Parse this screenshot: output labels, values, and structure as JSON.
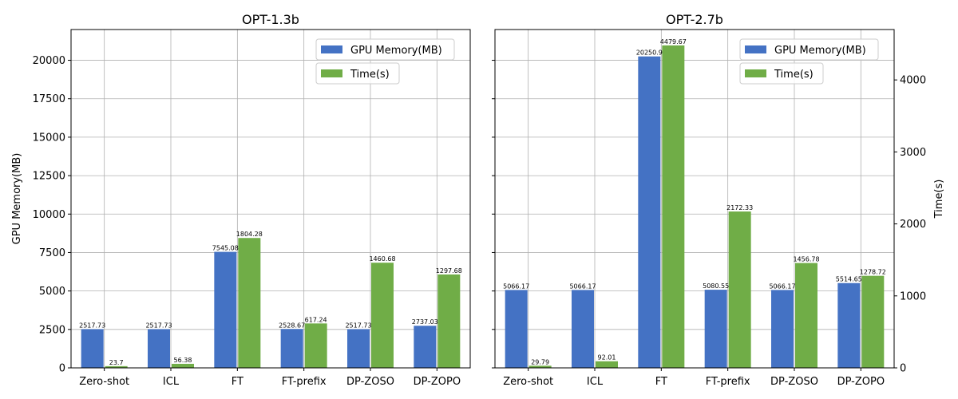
{
  "chart_data": [
    {
      "type": "bar",
      "title": "OPT-1.3b",
      "categories": [
        "Zero-shot",
        "ICL",
        "FT",
        "FT-prefix",
        "DP-ZOSO",
        "DP-ZOPO"
      ],
      "left_axis": {
        "label": "GPU Memory(MB)",
        "ylim": [
          0,
          22000
        ],
        "ticks": [
          0,
          2500,
          5000,
          7500,
          10000,
          12500,
          15000,
          17500,
          20000
        ]
      },
      "right_axis": {
        "label": "",
        "ylim": [
          0,
          4700
        ],
        "ticks": [],
        "tick_labels_shown": false
      },
      "series": [
        {
          "name": "GPU Memory(MB)",
          "axis": "left",
          "color": "#4472c4",
          "values": [
            2517.73,
            2517.73,
            7545.08,
            2528.67,
            2517.73,
            2737.03
          ],
          "labels": [
            "2517.73",
            "2517.73",
            "7545.08",
            "2528.67",
            "2517.73",
            "2737.03"
          ]
        },
        {
          "name": "Time(s)",
          "axis": "right",
          "color": "#70ad47",
          "values": [
            23.7,
            56.38,
            1804.28,
            617.24,
            1460.68,
            1297.68
          ],
          "labels": [
            "23.7",
            "56.38",
            "1804.28",
            "617.24",
            "1460.68",
            "1297.68"
          ]
        }
      ],
      "grid": true,
      "legend": "top-right"
    },
    {
      "type": "bar",
      "title": "OPT-2.7b",
      "categories": [
        "Zero-shot",
        "ICL",
        "FT",
        "FT-prefix",
        "DP-ZOSO",
        "DP-ZOPO"
      ],
      "left_axis": {
        "label": "",
        "ylim": [
          0,
          22000
        ],
        "ticks": [
          0,
          2500,
          5000,
          7500,
          10000,
          12500,
          15000,
          17500,
          20000
        ],
        "tick_labels_shown": false
      },
      "right_axis": {
        "label": "Time(s)",
        "ylim": [
          0,
          4700
        ],
        "ticks": [
          0,
          1000,
          2000,
          3000,
          4000
        ]
      },
      "series": [
        {
          "name": "GPU Memory(MB)",
          "axis": "left",
          "color": "#4472c4",
          "values": [
            5066.17,
            5066.17,
            20250.9,
            5080.55,
            5066.17,
            5514.65
          ],
          "labels": [
            "5066.17",
            "5066.17",
            "20250.9",
            "5080.55",
            "5066.17",
            "5514.65"
          ]
        },
        {
          "name": "Time(s)",
          "axis": "right",
          "color": "#70ad47",
          "values": [
            29.79,
            92.01,
            4479.67,
            2172.33,
            1456.78,
            1278.72
          ],
          "labels": [
            "29.79",
            "92.01",
            "4479.67",
            "2172.33",
            "1456.78",
            "1278.72"
          ]
        }
      ],
      "grid": true,
      "legend": "top-right"
    }
  ]
}
